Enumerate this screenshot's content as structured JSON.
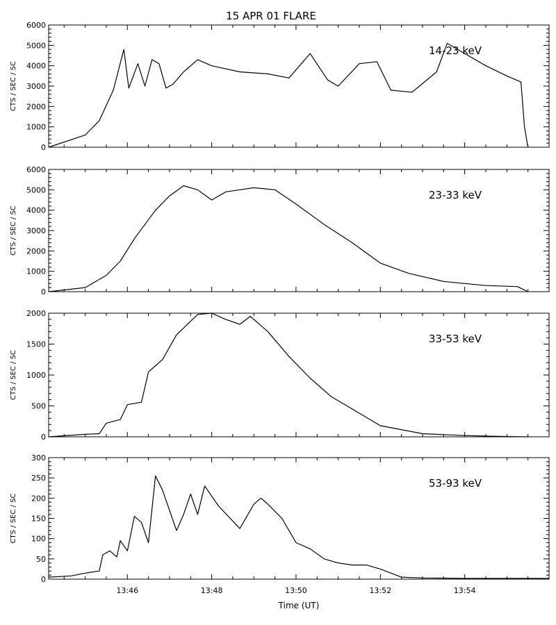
{
  "chart_data": {
    "type": "line",
    "title": "15 APR 01 FLARE",
    "xlabel": "Time (UT)",
    "x_tick_labels": [
      "13:46",
      "13:48",
      "13:50",
      "13:52",
      "13:54"
    ],
    "xlim": [
      "13:44:08",
      "13:56:00"
    ],
    "colors": {
      "line": "#000000",
      "axes": "#000000",
      "background": "#ffffff"
    },
    "panels": [
      {
        "band_label": "14-23 keV",
        "ylabel": "CTS / SEC / SC",
        "ylim": [
          0,
          6000
        ],
        "y_tick_labels": [
          "0",
          "1000",
          "2000",
          "3000",
          "4000",
          "5000",
          "6000"
        ],
        "x": [
          "13:44:08",
          "13:45:00",
          "13:45:20",
          "13:45:40",
          "13:45:55",
          "13:46:02",
          "13:46:15",
          "13:46:25",
          "13:46:35",
          "13:46:45",
          "13:46:55",
          "13:47:05",
          "13:47:20",
          "13:47:40",
          "13:48:00",
          "13:48:40",
          "13:49:20",
          "13:49:50",
          "13:50:20",
          "13:50:45",
          "13:51:00",
          "13:51:30",
          "13:51:55",
          "13:52:15",
          "13:52:45",
          "13:53:20",
          "13:53:35",
          "13:54:00",
          "13:54:30",
          "13:55:00",
          "13:55:20",
          "13:55:25",
          "13:55:30"
        ],
        "values": [
          0,
          600,
          1300,
          2800,
          4800,
          2900,
          4100,
          3000,
          4300,
          4100,
          2900,
          3100,
          3700,
          4300,
          4000,
          3700,
          3600,
          3400,
          4600,
          3300,
          3000,
          4100,
          4200,
          2800,
          2700,
          3700,
          5100,
          4600,
          4000,
          3500,
          3200,
          1000,
          0
        ]
      },
      {
        "band_label": "23-33 keV",
        "ylabel": "CTS / SEC / SC",
        "ylim": [
          0,
          6000
        ],
        "y_tick_labels": [
          "0",
          "1000",
          "2000",
          "3000",
          "4000",
          "5000",
          "6000"
        ],
        "x": [
          "13:44:08",
          "13:45:00",
          "13:45:30",
          "13:45:50",
          "13:46:10",
          "13:46:40",
          "13:47:00",
          "13:47:20",
          "13:47:40",
          "13:48:00",
          "13:48:20",
          "13:48:40",
          "13:49:00",
          "13:49:30",
          "13:50:00",
          "13:50:40",
          "13:51:20",
          "13:52:00",
          "13:52:40",
          "13:53:30",
          "13:54:30",
          "13:55:15",
          "13:55:30"
        ],
        "values": [
          0,
          200,
          800,
          1500,
          2600,
          4000,
          4700,
          5200,
          5000,
          4500,
          4900,
          5000,
          5100,
          5000,
          4300,
          3300,
          2400,
          1400,
          900,
          500,
          300,
          250,
          0
        ]
      },
      {
        "band_label": "33-53 keV",
        "ylabel": "CTS / SEC / SC",
        "ylim": [
          0,
          2000
        ],
        "y_tick_labels": [
          "0",
          "500",
          "1000",
          "1500",
          "2000"
        ],
        "x": [
          "13:44:08",
          "13:45:00",
          "13:45:20",
          "13:45:30",
          "13:45:50",
          "13:46:00",
          "13:46:20",
          "13:46:30",
          "13:46:50",
          "13:47:10",
          "13:47:40",
          "13:48:00",
          "13:48:20",
          "13:48:40",
          "13:48:55",
          "13:49:20",
          "13:49:50",
          "13:50:20",
          "13:50:50",
          "13:51:20",
          "13:52:00",
          "13:53:00",
          "13:54:00",
          "13:55:00",
          "13:55:30"
        ],
        "values": [
          0,
          40,
          50,
          220,
          280,
          520,
          560,
          1050,
          1250,
          1650,
          1980,
          2000,
          1900,
          1820,
          1950,
          1700,
          1300,
          950,
          650,
          450,
          180,
          50,
          20,
          5,
          0
        ]
      },
      {
        "band_label": "53-93 keV",
        "ylabel": "CTS / SEC / SC",
        "ylim": [
          0,
          300
        ],
        "y_tick_labels": [
          "0",
          "50",
          "100",
          "150",
          "200",
          "250",
          "300"
        ],
        "x": [
          "13:44:08",
          "13:44:40",
          "13:45:00",
          "13:45:20",
          "13:45:25",
          "13:45:35",
          "13:45:45",
          "13:45:50",
          "13:46:00",
          "13:46:10",
          "13:46:20",
          "13:46:30",
          "13:46:40",
          "13:46:50",
          "13:47:10",
          "13:47:20",
          "13:47:30",
          "13:47:40",
          "13:47:50",
          "13:48:10",
          "13:48:40",
          "13:49:00",
          "13:49:10",
          "13:49:20",
          "13:49:40",
          "13:50:00",
          "13:50:20",
          "13:50:40",
          "13:51:00",
          "13:51:20",
          "13:51:40",
          "13:52:00",
          "13:52:30",
          "13:53:00",
          "13:54:00",
          "13:55:00",
          "13:56:00"
        ],
        "values": [
          5,
          8,
          15,
          20,
          60,
          70,
          55,
          95,
          70,
          155,
          140,
          90,
          255,
          220,
          120,
          160,
          210,
          160,
          230,
          180,
          125,
          185,
          200,
          185,
          150,
          90,
          75,
          50,
          40,
          35,
          35,
          25,
          5,
          3,
          2,
          2,
          2
        ]
      }
    ]
  }
}
